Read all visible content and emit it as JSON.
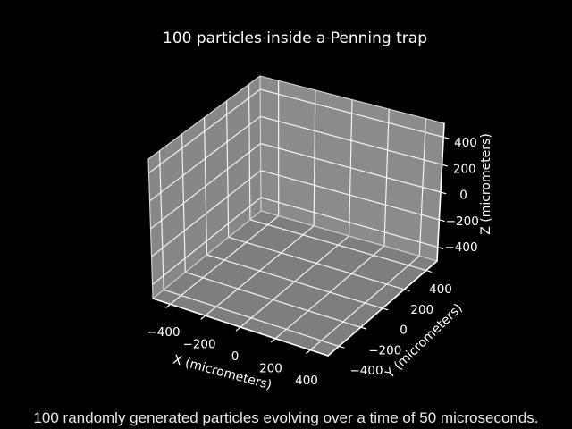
{
  "title": "100 particles inside a Penning trap",
  "caption": "100 randomly generated particles evolving over a time of 50 microseconds.",
  "colors": {
    "background": "#000000",
    "text": "#ffffff",
    "caption_text": "#e9e9e9",
    "pane_left": "#878787",
    "pane_right": "#8b8b8b",
    "pane_floor": "#7e7e7e",
    "grid": "#ffffff",
    "edge": "#d8d8d8",
    "spine": "#ffffff"
  },
  "chart_data": {
    "type": "scatter",
    "projection": "3d",
    "title": "100 particles inside a Penning trap",
    "xlabel": "X (micrometers)",
    "ylabel": "Y (micrometers)",
    "zlabel": "Z (micrometers)",
    "xlim": [
      -500,
      500
    ],
    "ylim": [
      -500,
      500
    ],
    "zlim": [
      -500,
      500
    ],
    "xticks": [
      -400,
      -200,
      0,
      200,
      400
    ],
    "yticks": [
      -400,
      -200,
      0,
      200,
      400
    ],
    "zticks": [
      -400,
      -200,
      0,
      200,
      400
    ],
    "grid": true,
    "legend": false,
    "series": [],
    "annotation": "100 randomly generated particles evolving over a time of 50 microseconds."
  }
}
